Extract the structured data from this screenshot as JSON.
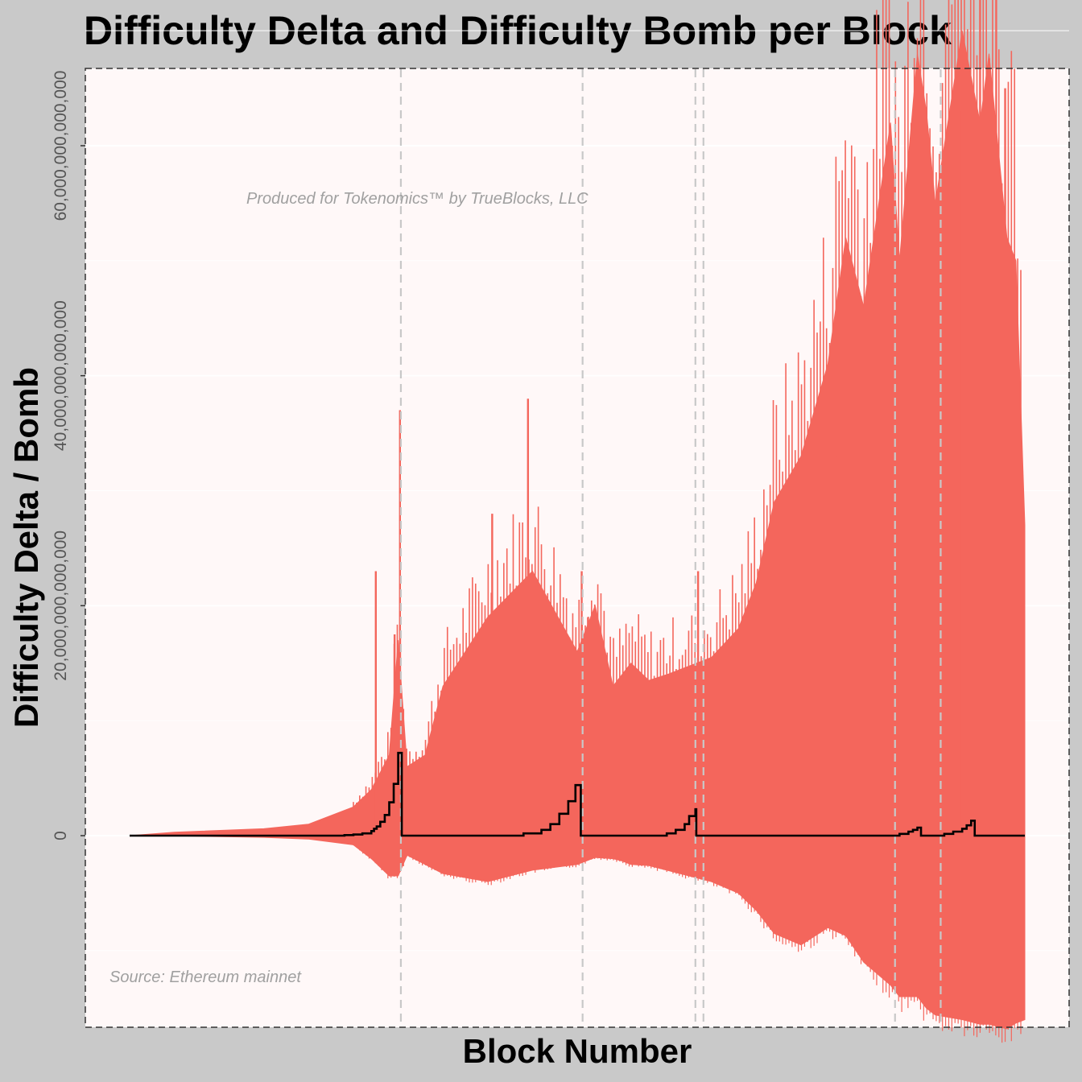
{
  "title": "Difficulty Delta and Difficulty Bomb per Block",
  "chart_data": {
    "type": "line",
    "title": "Difficulty Delta and Difficulty Bomb per Block",
    "xlabel": "Block Number",
    "ylabel": "Difficulty Delta / Bomb",
    "ylim": [
      -16500000000000,
      67000000000000
    ],
    "y_ticks": [
      0,
      20000000000000,
      40000000000000,
      60000000000000
    ],
    "y_tick_labels": [
      "0",
      "20,000,000,000,000",
      "40,000,000,000,000",
      "60,000,000,000,000"
    ],
    "x_tick_labels": [],
    "grid": true,
    "legend": "none",
    "colors": {
      "delta": "#f4665c",
      "bomb": "#000000",
      "panel": "#fff8f8",
      "background": "#c9c9c9",
      "fork_line": "#c8c8c8"
    },
    "fork_markers": {
      "count": 7,
      "style": "dashed vertical lines"
    },
    "series": [
      {
        "key": "delta_envelope",
        "style": "red band",
        "x": [
          0,
          5,
          15,
          20,
          25,
          27,
          29,
          30,
          31,
          33,
          35,
          40,
          45,
          50,
          52,
          54,
          55,
          56,
          58,
          60,
          65,
          68,
          70,
          72,
          75,
          78,
          80,
          82,
          85,
          86,
          88,
          89,
          90,
          93,
          95,
          96,
          97,
          98,
          99,
          100
        ],
        "upper": [
          0,
          300000000000.0,
          600000000000.0,
          1000000000000.0,
          2500000000000.0,
          4000000000000.0,
          7000000000000.0,
          17000000000000.0,
          6000000000000.0,
          7000000000000.0,
          13000000000000.0,
          19000000000000.0,
          23000000000000.0,
          16000000000000.0,
          20000000000000.0,
          13000000000000.0,
          14000000000000.0,
          15000000000000.0,
          13500000000000.0,
          14000000000000.0,
          15500000000000.0,
          18000000000000.0,
          22000000000000.0,
          29000000000000.0,
          33000000000000.0,
          41000000000000.0,
          52000000000000.0,
          46000000000000.0,
          62000000000000.0,
          50000000000000.0,
          68000000000000.0,
          63000000000000.0,
          55000000000000.0,
          70000000000000.0,
          62000000000000.0,
          68000000000000.0,
          60000000000000.0,
          52000000000000.0,
          50000000000000.0,
          27000000000000.0
        ],
        "lower": [
          0,
          -20000000000.0,
          -150000000000.0,
          -300000000000.0,
          -800000000000.0,
          -2000000000000.0,
          -3500000000000.0,
          -3500000000000.0,
          -1700000000000.0,
          -2500000000000.0,
          -3300000000000.0,
          -4000000000000.0,
          -3000000000000.0,
          -2500000000000.0,
          -1900000000000.0,
          -2000000000000.0,
          -2200000000000.0,
          -2500000000000.0,
          -2600000000000.0,
          -3000000000000.0,
          -4000000000000.0,
          -5000000000000.0,
          -6500000000000.0,
          -8500000000000.0,
          -9500000000000.0,
          -8000000000000.0,
          -8700000000000.0,
          -11000000000000.0,
          -13000000000000.0,
          -14000000000000.0,
          -14000000000000.0,
          -15000000000000.0,
          -15600000000000.0,
          -16000000000000.0,
          -16400000000000.0,
          -16400000000000.0,
          -16600000000000.0,
          -16800000000000.0,
          -16300000000000.0,
          -16000000000000.0
        ]
      },
      {
        "key": "delta_spikes",
        "style": "red spikes",
        "x": [
          27.5,
          29.6,
          30.2,
          40.5,
          44.5,
          50.5,
          51.2,
          63.5,
          73.5,
          79.0,
          82.0,
          87.5,
          91.5,
          93.0,
          95.0,
          96.8,
          97.8
        ],
        "value": [
          23000000000000.0,
          17500000000000.0,
          37000000000000.0,
          28000000000000.0,
          38000000000000.0,
          23000000000000.0,
          19000000000000.0,
          23000000000000.0,
          18000000000000.0,
          33000000000000.0,
          36000000000000.0,
          51000000000000.0,
          61000000000000.0,
          63000000000000.0,
          75000000000000.0,
          73000000000000.0,
          65000000000000.0
        ]
      },
      {
        "key": "bomb",
        "style": "black step line",
        "x": [
          0,
          20,
          24,
          25,
          26,
          27,
          27.3,
          27.6,
          28,
          28.5,
          29,
          29.5,
          30,
          30.3,
          30.4,
          40,
          44,
          46,
          47,
          48,
          49,
          49.8,
          50.3,
          50.4,
          56,
          60,
          61,
          62,
          62.5,
          63.2,
          63.3,
          64.5,
          86,
          87,
          87.5,
          88,
          88.4,
          91,
          92,
          93,
          93.5,
          94,
          94.4,
          100
        ],
        "value": [
          0,
          0,
          50000000000.0,
          100000000000.0,
          200000000000.0,
          400000000000.0,
          600000000000.0,
          800000000000.0,
          1200000000000.0,
          1800000000000.0,
          2900000000000.0,
          4500000000000.0,
          7200000000000.0,
          7200000000000.0,
          0,
          0,
          200000000000.0,
          500000000000.0,
          1000000000000.0,
          1900000000000.0,
          3000000000000.0,
          4400000000000.0,
          4400000000000.0,
          0,
          0,
          200000000000.0,
          500000000000.0,
          1000000000000.0,
          1700000000000.0,
          2300000000000.0,
          0,
          0,
          150000000000.0,
          350000000000.0,
          500000000000.0,
          700000000000.0,
          0,
          150000000000.0,
          350000000000.0,
          600000000000.0,
          900000000000.0,
          1300000000000.0,
          0,
          0
        ]
      }
    ],
    "annotations": [
      "Produced for Tokenomics™ by TrueBlocks, LLC",
      "Source: Ethereum mainnet"
    ]
  }
}
